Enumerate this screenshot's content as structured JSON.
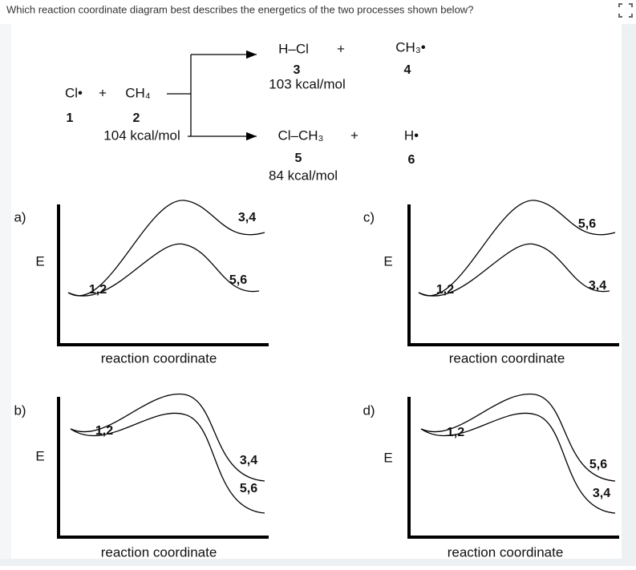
{
  "question": "Which reaction coordinate diagram best describes the energetics of the two processes shown below?",
  "reaction": {
    "reactants": {
      "species": [
        "Cl•",
        "+",
        "CH₄"
      ],
      "numbers": [
        "1",
        "2"
      ],
      "energy": "104 kcal/mol"
    },
    "products_top": {
      "species": [
        "H–Cl",
        "+",
        "CH₃•"
      ],
      "numbers": [
        "3",
        "4"
      ],
      "energy": "103 kcal/mol"
    },
    "products_bottom": {
      "species": [
        "Cl–CH₃",
        "+",
        "H•"
      ],
      "numbers": [
        "5",
        "6"
      ],
      "energy": "84 kcal/mol"
    }
  },
  "panels": [
    {
      "label": "a)",
      "axis": "E",
      "xlabel": "reaction coordinate",
      "start": "1,2",
      "upper_end": "3,4",
      "lower_end": "5,6"
    },
    {
      "label": "b)",
      "axis": "E",
      "xlabel": "reaction coordinate",
      "start": "1,2",
      "upper_end": "3,4",
      "lower_end": "5,6"
    },
    {
      "label": "c)",
      "axis": "E",
      "xlabel": "reaction coordinate",
      "start": "1,2",
      "upper_end": "5,6",
      "lower_end": "3,4"
    },
    {
      "label": "d)",
      "axis": "E",
      "xlabel": "reaction coordinate",
      "start": "1,2",
      "upper_end": "5,6",
      "lower_end": "3,4"
    }
  ]
}
